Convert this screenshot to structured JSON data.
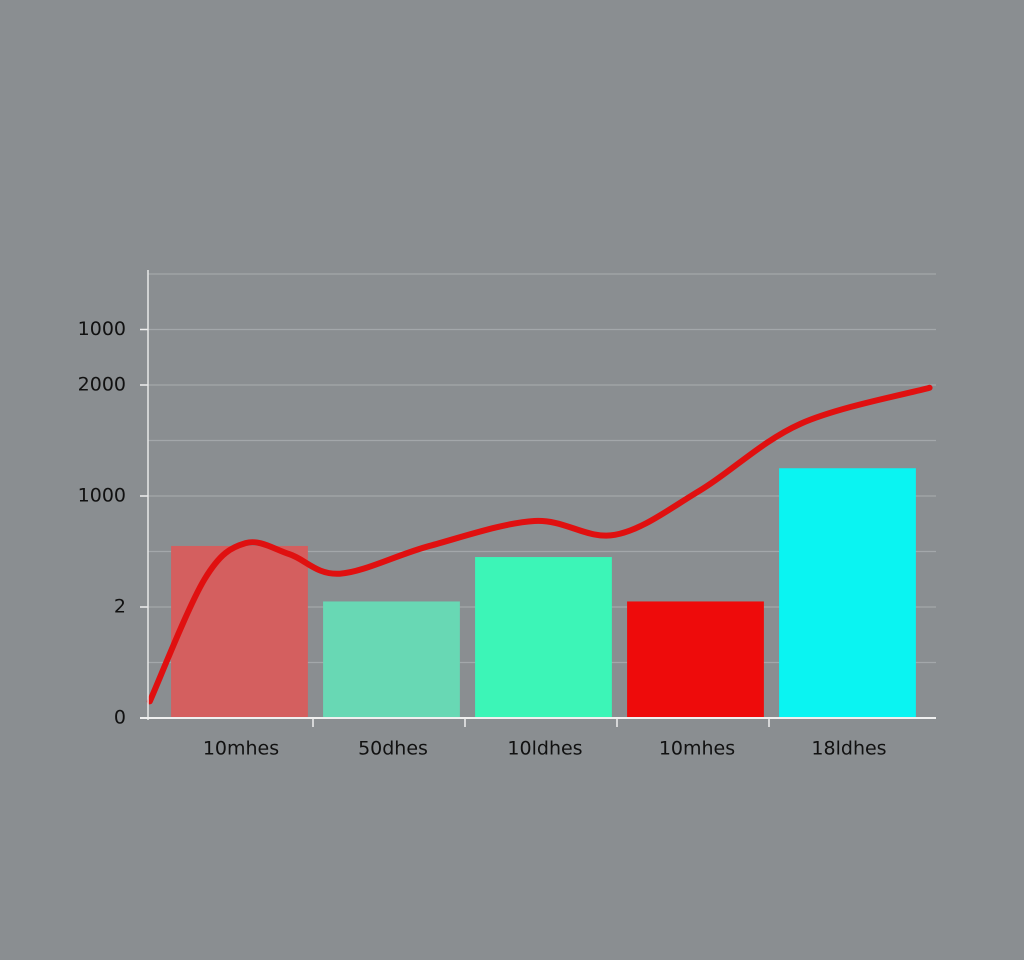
{
  "chart_data": {
    "type": "bar",
    "categories": [
      "10mhes",
      "50dhes",
      "10ldhes",
      "10mhes",
      "18ldhes"
    ],
    "series": [
      {
        "type": "bar",
        "colors": [
          "#d45f5f",
          "#68d8b4",
          "#3cf5b7",
          "#ee0b0b",
          "#0af4f2"
        ],
        "values": [
          3.1,
          2.1,
          2.9,
          2.1,
          4.5
        ]
      },
      {
        "type": "line",
        "color": "#e01010",
        "x": [
          -0.6,
          -0.24,
          0.03,
          0.32,
          0.65,
          1.24,
          1.93,
          2.46,
          3.02,
          3.68,
          4.53
        ],
        "values": [
          0.3,
          2.5,
          3.15,
          2.95,
          2.6,
          3.1,
          3.55,
          3.3,
          4.1,
          5.3,
          5.95
        ]
      }
    ],
    "ylim": [
      0,
      8
    ],
    "yticks": [
      0,
      2,
      {
        "value": 4,
        "label": "1000"
      },
      {
        "value": 6,
        "label": "2000"
      },
      {
        "value": 7,
        "label": "1000"
      }
    ],
    "minor_yticks": [
      1,
      3,
      5,
      8
    ],
    "grid": true
  }
}
